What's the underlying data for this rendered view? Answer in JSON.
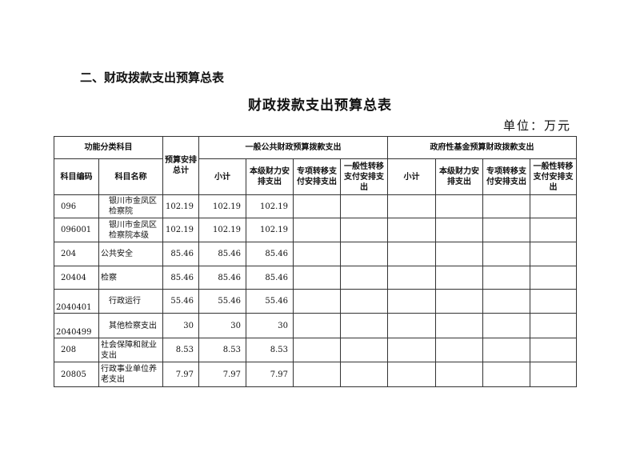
{
  "section_heading": "二、财政拨款支出预算总表",
  "title": "财政拨款支出预算总表",
  "unit": "单位：万元",
  "headers": {
    "func_class": "功能分类科目",
    "total": "预算安排总计",
    "general": "一般公共财政预算拨款支出",
    "fund": "政府性基金预算财政拨款支出",
    "code": "科目编码",
    "name": "科目名称",
    "sub": [
      "小计",
      "本级财力安排支出",
      "专项转移支付安排支出",
      "一般性转移支付安排支出",
      "小计",
      "本级财力安排支出",
      "专项转移支付安排支出",
      "一般性转移支付安排支出"
    ]
  },
  "rows": [
    {
      "code": "096",
      "name": "银川市金凤区检察院",
      "total": "102.19",
      "sub": "102.19",
      "local": "102.19"
    },
    {
      "code": "096001",
      "name": "银川市金凤区检察院本级",
      "total": "102.19",
      "sub": "102.19",
      "local": "102.19"
    },
    {
      "code": "204",
      "name": "公共安全",
      "total": "85.46",
      "sub": "85.46",
      "local": "85.46"
    },
    {
      "code": "20404",
      "name": "检察",
      "total": "85.46",
      "sub": "85.46",
      "local": "85.46"
    },
    {
      "code": "2040401",
      "name": "行政运行",
      "total": "55.46",
      "sub": "55.46",
      "local": "55.46"
    },
    {
      "code": "2040499",
      "name": "其他检察支出",
      "total": "30",
      "sub": "30",
      "local": "30"
    },
    {
      "code": "208",
      "name": "社会保障和就业支出",
      "total": "8.53",
      "sub": "8.53",
      "local": "8.53"
    },
    {
      "code": "20805",
      "name": "行政事业单位养老支出",
      "total": "7.97",
      "sub": "7.97",
      "local": "7.97"
    }
  ]
}
